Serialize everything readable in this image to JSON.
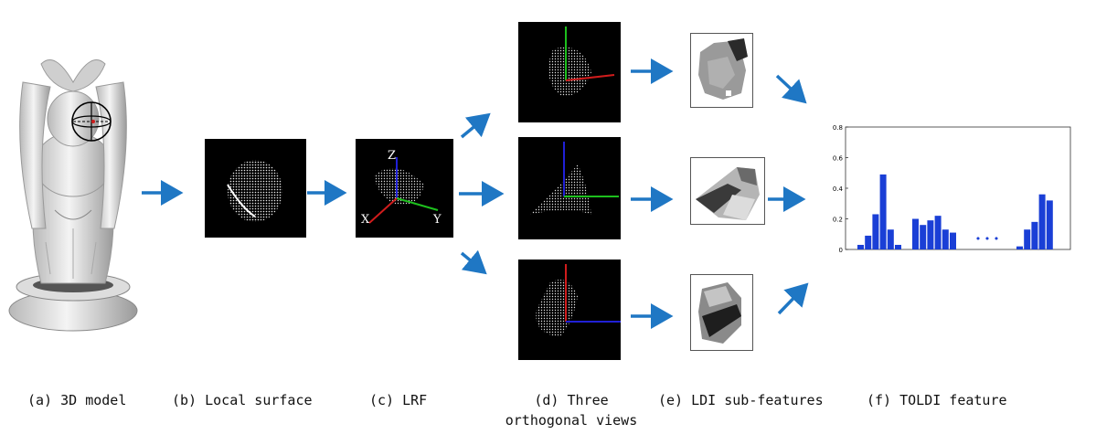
{
  "axis_letters": {
    "x": "X",
    "y": "Y",
    "z": "Z"
  },
  "captions": {
    "a": "(a) 3D model",
    "b": "(b) Local surface",
    "c": "(c) LRF",
    "d_line1": "(d) Three",
    "d_line2": "orthogonal views",
    "e": "(e) LDI sub-features",
    "f": "(f) TOLDI feature"
  },
  "colors": {
    "arrow": "#1f77c4",
    "bar": "#1a3fd6",
    "x_axis": "#d01c1c",
    "y_axis": "#1dbf1d",
    "z_axis": "#2020d6"
  },
  "ellipsis": "•  •  •",
  "chart_data": {
    "type": "bar",
    "title": "",
    "xlabel": "",
    "ylabel": "",
    "ylim": [
      0,
      0.8
    ],
    "yticks": [
      "0",
      "0.2",
      "0.4",
      "0.6",
      "0.8"
    ],
    "groups": [
      {
        "values": [
          0.03,
          0.09,
          0.23,
          0.49,
          0.13,
          0.03
        ]
      },
      {
        "values": [
          0.2,
          0.16,
          0.19,
          0.22,
          0.13,
          0.11
        ]
      },
      {
        "values": [
          0.02,
          0.13,
          0.18,
          0.36,
          0.32
        ]
      }
    ]
  }
}
